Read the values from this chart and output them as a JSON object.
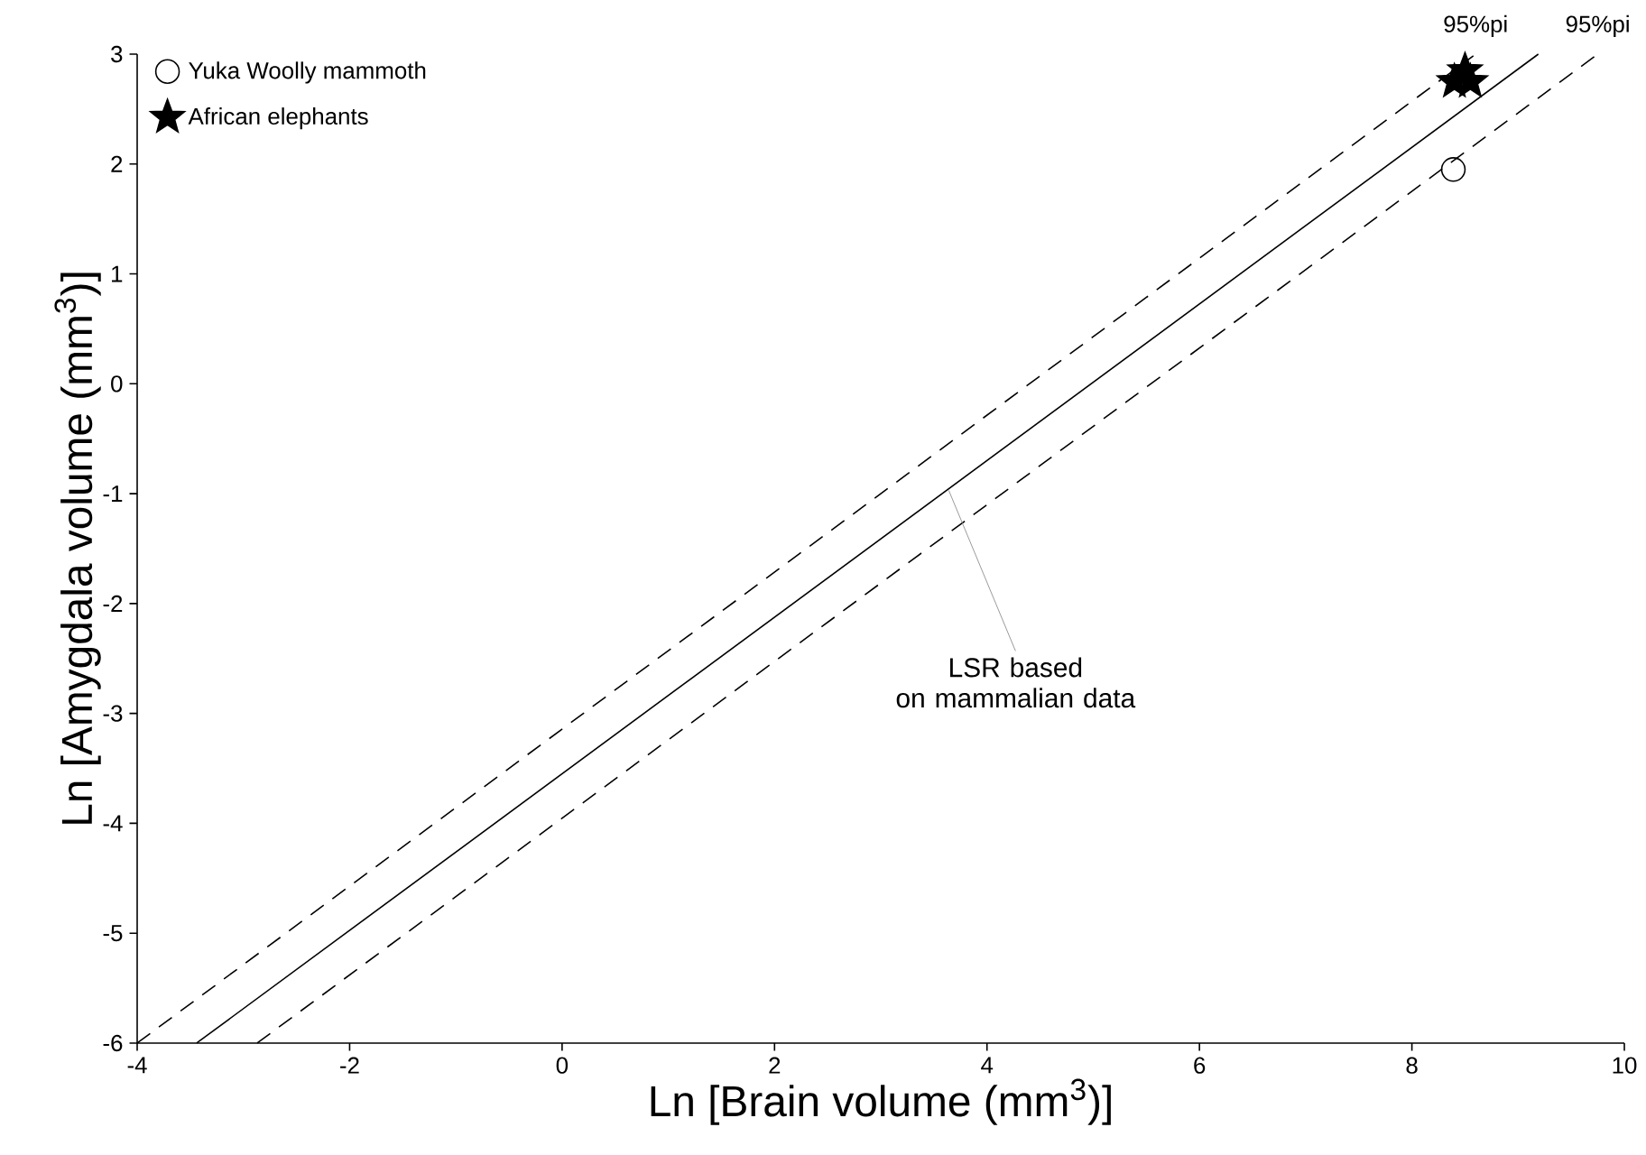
{
  "chart_data": {
    "type": "scatter",
    "xlabel": "Ln [Brain volume (mm$^{3}$)]",
    "ylabel": "Ln [Amygdala volume (mm$^{3}$)]",
    "xlim": [
      -4,
      10
    ],
    "ylim": [
      -6,
      3
    ],
    "xticks": [
      -4,
      -2,
      0,
      2,
      4,
      6,
      8,
      10
    ],
    "yticks": [
      -6,
      -5,
      -4,
      -3,
      -2,
      -1,
      0,
      1,
      2,
      3
    ],
    "grid": false,
    "legend": "top left",
    "series": [
      {
        "name": "Yuka Woolly mammoth",
        "color": "#000000",
        "marker": "circle",
        "x": [
          8.39
        ],
        "values": [
          1.95
        ]
      },
      {
        "name": "African elephants",
        "color": "#000000",
        "marker": "star",
        "x": [
          8.4,
          8.5,
          8.55
        ],
        "values": [
          2.75,
          2.85,
          2.75
        ]
      },
      {
        "color": "#000000",
        "type": "line",
        "line_style": "solid",
        "marker": "none",
        "x": [
          -3.44,
          9.19
        ],
        "values": [
          -6,
          3
        ]
      },
      {
        "name": "95%pi",
        "color": "#000000",
        "type": "line",
        "line_style": "dashed",
        "marker": "none",
        "x": [
          -4,
          8.6
        ],
        "values": [
          -6,
          3
        ]
      },
      {
        "name": "95%pi",
        "color": "#000000",
        "type": "line",
        "line_style": "dashed",
        "marker": "none",
        "x": [
          -2.87,
          9.75
        ],
        "values": [
          -6,
          3
        ]
      }
    ],
    "annotations": [
      {
        "text": "LSR based\non mammalian data",
        "x": 3.64,
        "y": -0.97
      }
    ]
  }
}
